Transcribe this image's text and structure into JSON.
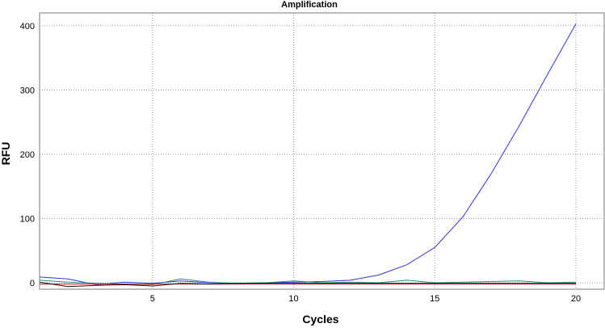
{
  "chart_data": {
    "type": "line",
    "title": "Amplification",
    "xlabel": "Cycles",
    "ylabel": "RFU",
    "xlim": [
      1,
      21
    ],
    "ylim": [
      -10,
      420
    ],
    "x_ticks": [
      5,
      10,
      15,
      20
    ],
    "y_ticks": [
      0,
      100,
      200,
      300,
      400
    ],
    "grid": true,
    "x": [
      1,
      2,
      3,
      4,
      5,
      6,
      7,
      8,
      9,
      10,
      11,
      12,
      13,
      14,
      15,
      16,
      17,
      18,
      19,
      20
    ],
    "series": [
      {
        "color": "#3333dd",
        "values": [
          9,
          6,
          -3,
          1,
          -1,
          3,
          0,
          -1,
          0,
          1,
          2,
          4,
          12,
          28,
          55,
          103,
          170,
          245,
          325,
          403
        ]
      },
      {
        "color": "#2e8b7a",
        "values": [
          4,
          1,
          -1,
          -2,
          -3,
          6,
          1,
          -1,
          0,
          3,
          0,
          1,
          0,
          4,
          0,
          1,
          2,
          3,
          0,
          1
        ]
      },
      {
        "color": "#dd1111",
        "values": [
          -2,
          -2,
          -2,
          -2,
          -2,
          -2,
          -2,
          -2,
          -2,
          -2,
          -2,
          -2,
          -2,
          -2,
          -2,
          -2,
          -2,
          -2,
          -2,
          -2
        ]
      },
      {
        "color": "#111111",
        "values": [
          1,
          -6,
          -4,
          -3,
          -5,
          -1,
          -2,
          -1,
          -1,
          -1,
          -1,
          -1,
          -1,
          -1,
          -1,
          -1,
          -1,
          -1,
          -1,
          -1
        ]
      }
    ]
  }
}
